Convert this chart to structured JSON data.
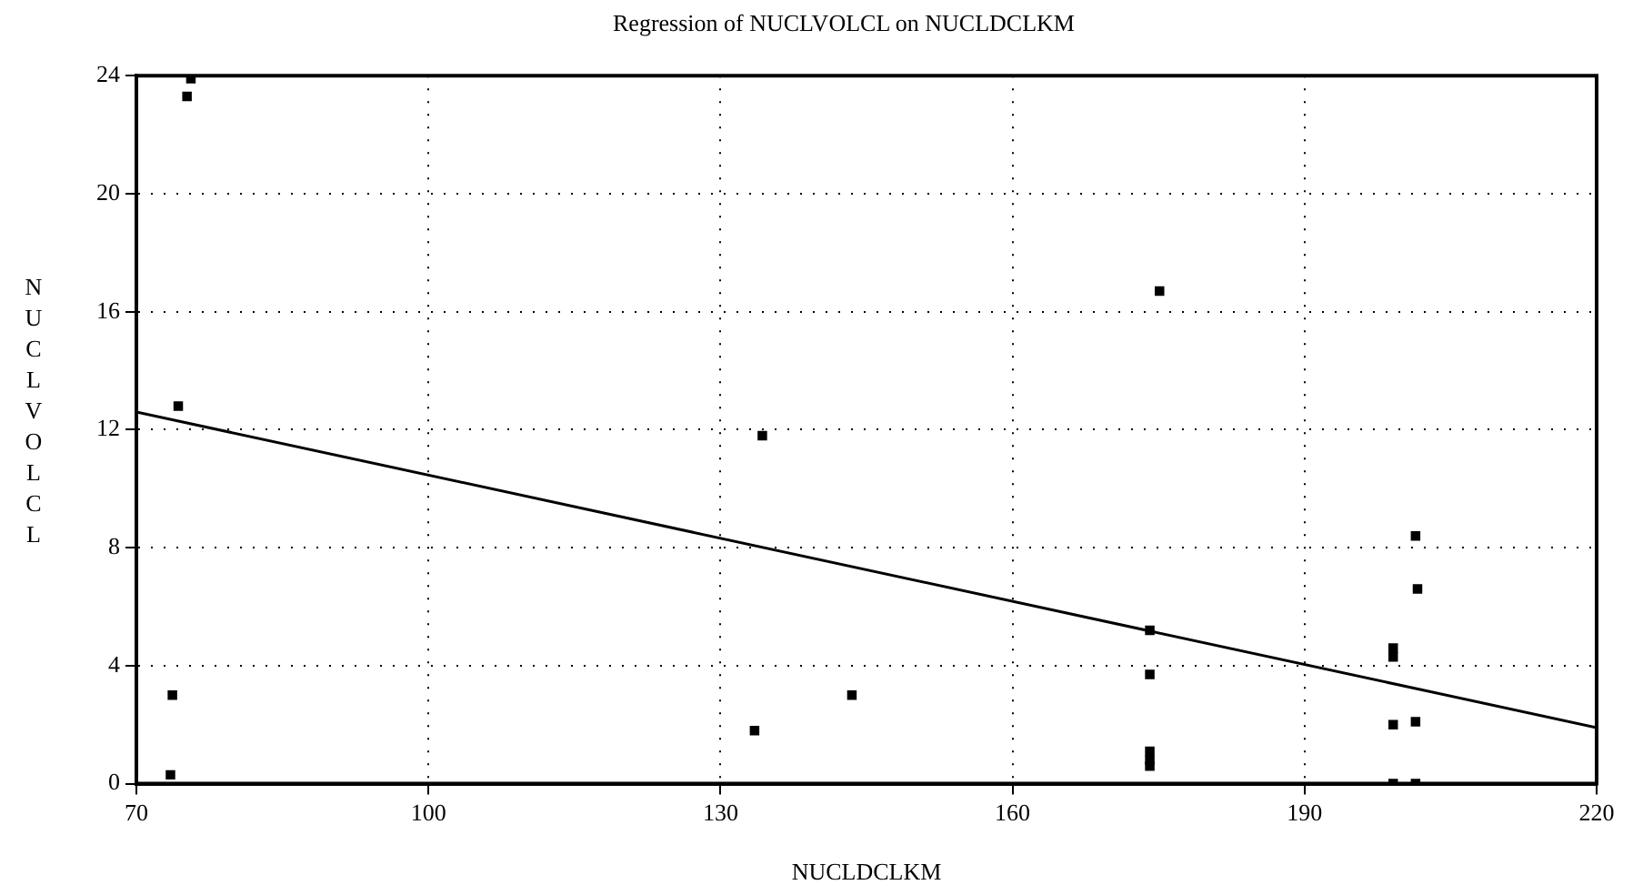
{
  "chart_data": {
    "type": "scatter",
    "title": "Regression of NUCLVOLCL on NUCLDCLKM",
    "xlabel": "NUCLDCLKM",
    "ylabel": "NUCLVOLCL",
    "xlim": [
      70,
      220
    ],
    "xticks": [
      70,
      100,
      130,
      160,
      190,
      220
    ],
    "ylim": [
      0,
      24
    ],
    "yticks": [
      0,
      4,
      8,
      12,
      16,
      20,
      24
    ],
    "grid": true,
    "legend": false,
    "marker": "square",
    "series": [
      {
        "type": "scatter",
        "color": "#000000",
        "x": [
          75.2,
          75.6,
          74.3,
          73.7,
          73.5,
          134.3,
          133.5,
          143.5,
          175.1,
          174.1,
          174.1,
          174.1,
          174.1,
          174.1,
          199.1,
          199.1,
          199.1,
          199.1,
          201.4,
          201.6,
          201.4,
          201.4
        ],
        "values": [
          23.3,
          23.9,
          12.8,
          3.0,
          0.3,
          11.8,
          1.8,
          3.0,
          16.7,
          5.2,
          3.7,
          1.1,
          0.8,
          0.6,
          4.3,
          4.6,
          2.0,
          0,
          8.4,
          6.6,
          2.1,
          0
        ]
      },
      {
        "type": "line",
        "color": "#000000",
        "x": [
          70,
          220
        ],
        "values": [
          12.6,
          1.9
        ],
        "marker": "none",
        "line_style": "solid"
      }
    ]
  }
}
